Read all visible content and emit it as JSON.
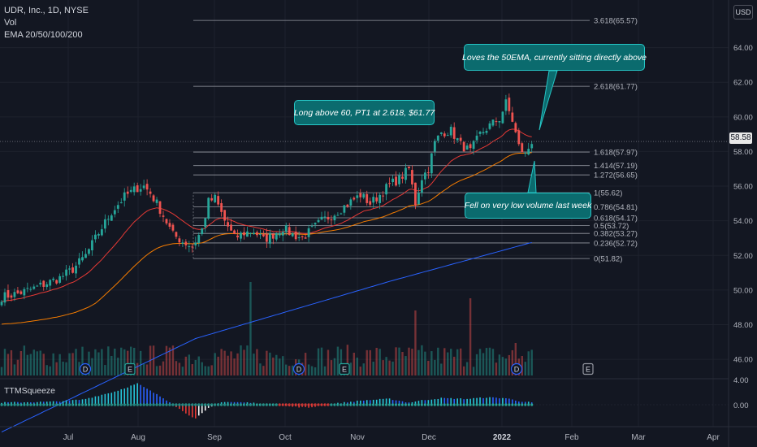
{
  "legend": {
    "title": "UDR, Inc., 1D, NYSE",
    "vol": "Vol",
    "ema": "EMA 20/50/100/200"
  },
  "currency_button": "USD",
  "indicator_label": "TTMSqueeze",
  "last_price": "58.58",
  "callouts": [
    "Loves the 50EMA, currently sitting directly above",
    "Long above 60, PT1 at 2.618, $61.77",
    "Fell on very low volume last week"
  ],
  "colors": {
    "background": "#131722",
    "up": "#26a69a",
    "down": "#ef5350",
    "ema20": "#e53935",
    "ema50": "#f57c00",
    "ema200": "#2962ff",
    "fib": "#9598a1",
    "callout": "#0b6b6e"
  },
  "chart_data": {
    "type": "candlestick",
    "symbol": "UDR, Inc.",
    "interval": "1D",
    "exchange": "NYSE",
    "price_axis": {
      "ticks": [
        "64.00",
        "62.00",
        "60.00",
        "58.00",
        "56.00",
        "54.00",
        "52.00",
        "50.00",
        "48.00",
        "46.00"
      ],
      "range": [
        45.3,
        66.0
      ]
    },
    "time_axis": {
      "ticks": [
        "Jul",
        "Aug",
        "Sep",
        "Oct",
        "Nov",
        "Dec",
        "2022",
        "Feb",
        "Mar",
        "Apr"
      ]
    },
    "fib_levels": [
      {
        "label": "3.618(65.57)",
        "value": 65.57
      },
      {
        "label": "2.618(61.77)",
        "value": 61.77
      },
      {
        "label": "1.618(57.97)",
        "value": 57.97
      },
      {
        "label": "1.414(57.19)",
        "value": 57.19
      },
      {
        "label": "1.272(56.65)",
        "value": 56.65
      },
      {
        "label": "1(55.62)",
        "value": 55.62
      },
      {
        "label": "0.786(54.81)",
        "value": 54.81
      },
      {
        "label": "0.618(54.17)",
        "value": 54.17
      },
      {
        "label": "0.5(53.72)",
        "value": 53.72
      },
      {
        "label": "0.382(53.27)",
        "value": 53.27
      },
      {
        "label": "0.236(52.72)",
        "value": 52.72
      },
      {
        "label": "0(51.82)",
        "value": 51.82
      }
    ],
    "close_anchors": [
      [
        0,
        49.6
      ],
      [
        5,
        49.8
      ],
      [
        10,
        50.1
      ],
      [
        14,
        50.4
      ],
      [
        18,
        50.7
      ],
      [
        22,
        51.2
      ],
      [
        26,
        52.0
      ],
      [
        30,
        53.3
      ],
      [
        34,
        54.5
      ],
      [
        38,
        55.4
      ],
      [
        42,
        55.9
      ],
      [
        44,
        56.0
      ],
      [
        46,
        55.6
      ],
      [
        48,
        55.0
      ],
      [
        50,
        54.3
      ],
      [
        53,
        53.2
      ],
      [
        56,
        52.8
      ],
      [
        59,
        52.5
      ],
      [
        62,
        53.5
      ],
      [
        64,
        55.1
      ],
      [
        66,
        55.3
      ],
      [
        69,
        54.0
      ],
      [
        72,
        53.0
      ],
      [
        75,
        53.3
      ],
      [
        78,
        53.4
      ],
      [
        81,
        52.9
      ],
      [
        84,
        53.2
      ],
      [
        87,
        53.6
      ],
      [
        90,
        53.2
      ],
      [
        93,
        53.0
      ],
      [
        96,
        53.5
      ],
      [
        99,
        54.0
      ],
      [
        102,
        54.3
      ],
      [
        105,
        54.7
      ],
      [
        108,
        55.1
      ],
      [
        111,
        55.5
      ],
      [
        114,
        55.0
      ],
      [
        117,
        55.5
      ],
      [
        120,
        56.1
      ],
      [
        123,
        56.4
      ],
      [
        126,
        57.0
      ],
      [
        128,
        55.0
      ],
      [
        130,
        56.5
      ],
      [
        132,
        57.0
      ],
      [
        134,
        58.5
      ],
      [
        136,
        59.1
      ],
      [
        139,
        59.2
      ],
      [
        142,
        58.4
      ],
      [
        145,
        58.0
      ],
      [
        148,
        59.0
      ],
      [
        151,
        59.5
      ],
      [
        154,
        59.9
      ],
      [
        156,
        60.8
      ],
      [
        158,
        59.8
      ],
      [
        160,
        58.3
      ],
      [
        162,
        57.8
      ],
      [
        164,
        58.6
      ]
    ],
    "ema200_anchors": [
      [
        0,
        41.8
      ],
      [
        60,
        47.2
      ],
      [
        120,
        50.5
      ],
      [
        164,
        52.75
      ]
    ],
    "squeeze_histogram_anchors": [
      [
        0,
        0.3
      ],
      [
        15,
        0.4
      ],
      [
        25,
        0.7
      ],
      [
        35,
        1.8
      ],
      [
        42,
        2.9
      ],
      [
        46,
        1.9
      ],
      [
        52,
        0.4
      ],
      [
        56,
        -0.9
      ],
      [
        60,
        -1.9
      ],
      [
        64,
        -0.5
      ],
      [
        68,
        0.4
      ],
      [
        76,
        0.3
      ],
      [
        82,
        0.1
      ],
      [
        88,
        -0.2
      ],
      [
        95,
        -0.4
      ],
      [
        100,
        0.0
      ],
      [
        106,
        0.3
      ],
      [
        112,
        0.6
      ],
      [
        120,
        0.8
      ],
      [
        126,
        0.3
      ],
      [
        130,
        0.6
      ],
      [
        136,
        0.9
      ],
      [
        144,
        0.8
      ],
      [
        150,
        1.0
      ],
      [
        156,
        0.9
      ],
      [
        160,
        0.5
      ],
      [
        164,
        0.3
      ]
    ],
    "earnings_markers": [
      "E",
      "E",
      "E"
    ],
    "dividend_markers": [
      "D",
      "D",
      "D"
    ]
  }
}
